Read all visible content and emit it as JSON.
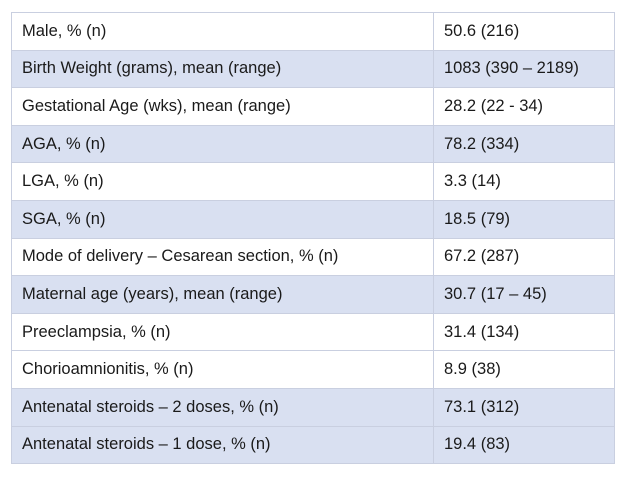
{
  "table": {
    "rows": [
      {
        "label": "Male, % (n)",
        "value": "50.6 (216)"
      },
      {
        "label": "Birth Weight (grams), mean (range)",
        "value": "1083 (390 – 2189)"
      },
      {
        "label": "Gestational Age (wks), mean (range)",
        "value": "28.2 (22 - 34)"
      },
      {
        "label": "AGA, % (n)",
        "value": "78.2 (334)"
      },
      {
        "label": "LGA, % (n)",
        "value": "3.3 (14)"
      },
      {
        "label": "SGA, % (n)",
        "value": "18.5 (79)"
      },
      {
        "label": "Mode of delivery – Cesarean section, % (n)",
        "value": "67.2 (287)"
      },
      {
        "label": "Maternal age (years), mean (range)",
        "value": "30.7 (17 – 45)"
      },
      {
        "label": "Preeclampsia, % (n)",
        "value": "31.4 (134)"
      },
      {
        "label": "Chorioamnionitis, % (n)",
        "value": "8.9 (38)"
      },
      {
        "label": "Antenatal steroids – 2 doses, % (n)",
        "value": "73.1 (312)"
      },
      {
        "label": "Antenatal steroids – 1 dose, % (n)",
        "value": "19.4 (83)"
      }
    ]
  },
  "colors": {
    "shaded_row": "#d9e0f1",
    "plain_row": "#ffffff",
    "border": "#c9cfe0",
    "text": "#1a1a1a"
  }
}
